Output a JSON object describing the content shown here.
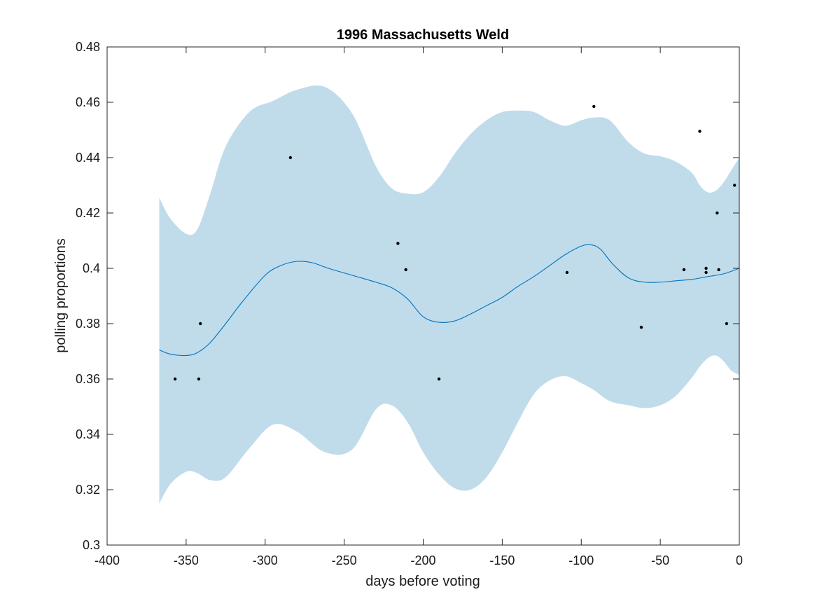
{
  "chart_data": {
    "type": "line",
    "title": "1996 Massachusetts Weld",
    "xlabel": "days before voting",
    "ylabel": "polling proportions",
    "xlim": [
      -400,
      0
    ],
    "ylim": [
      0.3,
      0.48
    ],
    "xticks": [
      -400,
      -350,
      -300,
      -250,
      -200,
      -150,
      -100,
      -50,
      0
    ],
    "yticks": [
      0.3,
      0.32,
      0.34,
      0.36,
      0.38,
      0.4,
      0.42,
      0.44,
      0.46,
      0.48
    ],
    "xtick_labels": [
      "-400",
      "-350",
      "-300",
      "-250",
      "-200",
      "-150",
      "-100",
      "-50",
      "0"
    ],
    "ytick_labels": [
      "0.3",
      "0.32",
      "0.34",
      "0.36",
      "0.38",
      "0.4",
      "0.42",
      "0.44",
      "0.46",
      "0.48"
    ],
    "grid": false,
    "colors": {
      "band": "#c0dceb",
      "line": "#0072bd",
      "points": "#000000",
      "axes": "#262626"
    },
    "series": [
      {
        "type": "band",
        "x": [
          -367,
          -360,
          -350,
          -343,
          -335,
          -325,
          -310,
          -295,
          -280,
          -262,
          -245,
          -230,
          -220,
          -210,
          -200,
          -190,
          -180,
          -170,
          -160,
          -150,
          -140,
          -130,
          -120,
          -110,
          -100,
          -92,
          -82,
          -70,
          -60,
          -50,
          -40,
          -30,
          -25,
          -20,
          -15,
          -10,
          -5,
          0
        ],
        "lower": [
          0.315,
          0.322,
          0.3265,
          0.326,
          0.3235,
          0.3245,
          0.335,
          0.3435,
          0.341,
          0.3335,
          0.3345,
          0.349,
          0.3505,
          0.3445,
          0.3335,
          0.3255,
          0.3205,
          0.32,
          0.3245,
          0.3335,
          0.3445,
          0.3545,
          0.3595,
          0.361,
          0.3585,
          0.356,
          0.352,
          0.3505,
          0.3495,
          0.3505,
          0.354,
          0.3605,
          0.3645,
          0.3675,
          0.3685,
          0.3665,
          0.363,
          0.3615
        ],
        "upper": [
          0.4255,
          0.418,
          0.4125,
          0.414,
          0.4265,
          0.444,
          0.4565,
          0.4605,
          0.4645,
          0.4655,
          0.456,
          0.437,
          0.429,
          0.427,
          0.4275,
          0.433,
          0.4415,
          0.4485,
          0.4535,
          0.4565,
          0.457,
          0.4565,
          0.4535,
          0.4515,
          0.4535,
          0.4545,
          0.4535,
          0.4455,
          0.4415,
          0.4405,
          0.4385,
          0.4345,
          0.43,
          0.4275,
          0.428,
          0.431,
          0.4355,
          0.44
        ]
      },
      {
        "type": "line",
        "x": [
          -367,
          -360,
          -350,
          -343,
          -335,
          -325,
          -315,
          -300,
          -290,
          -280,
          -270,
          -260,
          -245,
          -230,
          -220,
          -210,
          -200,
          -190,
          -180,
          -170,
          -160,
          -150,
          -140,
          -130,
          -120,
          -110,
          -100,
          -94,
          -88,
          -80,
          -70,
          -60,
          -50,
          -40,
          -30,
          -20,
          -10,
          0
        ],
        "y": [
          0.3705,
          0.369,
          0.3685,
          0.3695,
          0.373,
          0.38,
          0.3875,
          0.3975,
          0.401,
          0.4025,
          0.402,
          0.4,
          0.3975,
          0.395,
          0.393,
          0.389,
          0.3825,
          0.3805,
          0.381,
          0.3835,
          0.3865,
          0.3895,
          0.3935,
          0.397,
          0.401,
          0.405,
          0.408,
          0.4085,
          0.407,
          0.4015,
          0.3965,
          0.395,
          0.395,
          0.3955,
          0.396,
          0.397,
          0.398,
          0.4
        ]
      },
      {
        "type": "scatter",
        "points": [
          {
            "x": -357,
            "y": 0.36
          },
          {
            "x": -342,
            "y": 0.36
          },
          {
            "x": -341,
            "y": 0.38
          },
          {
            "x": -284,
            "y": 0.44
          },
          {
            "x": -216,
            "y": 0.409
          },
          {
            "x": -211,
            "y": 0.3995
          },
          {
            "x": -190,
            "y": 0.36
          },
          {
            "x": -109,
            "y": 0.3985
          },
          {
            "x": -92,
            "y": 0.4585
          },
          {
            "x": -62,
            "y": 0.3787
          },
          {
            "x": -35,
            "y": 0.3995
          },
          {
            "x": -25,
            "y": 0.4495
          },
          {
            "x": -21,
            "y": 0.4
          },
          {
            "x": -21,
            "y": 0.3985
          },
          {
            "x": -14,
            "y": 0.42
          },
          {
            "x": -13,
            "y": 0.3995
          },
          {
            "x": -8,
            "y": 0.38
          },
          {
            "x": -3,
            "y": 0.43
          }
        ]
      }
    ]
  }
}
